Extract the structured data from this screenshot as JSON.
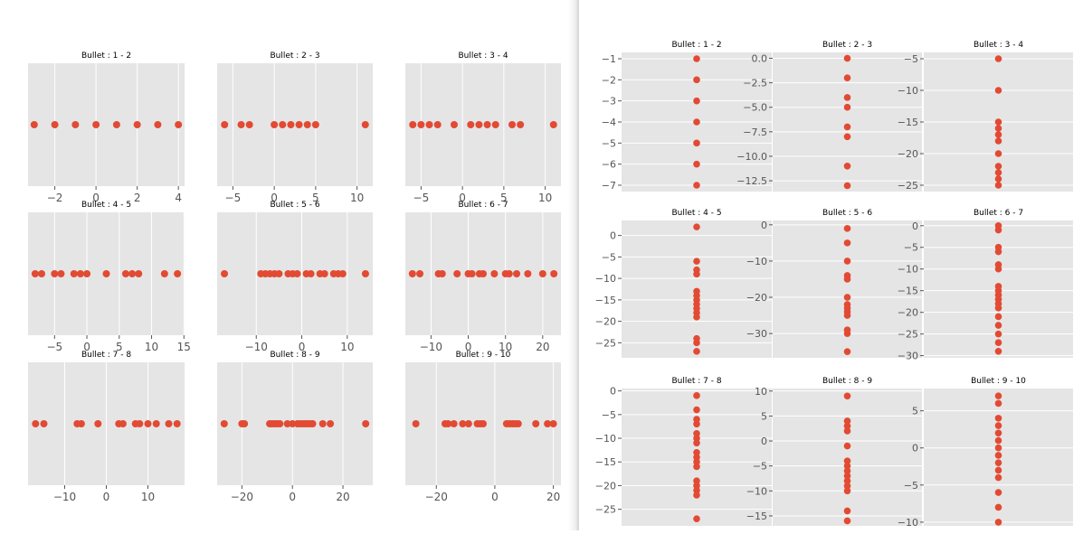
{
  "chart_data": [
    {
      "type": "scatter",
      "orientation": "horizontal",
      "panel": "left",
      "grid": "3x3",
      "subplots": [
        {
          "title": "Bullet : 1 - 2",
          "xlim": [
            -3.3,
            4.3
          ],
          "xticks": [
            -2,
            0,
            2,
            4
          ],
          "tick_labels": [
            "−2",
            "0",
            "2",
            "4"
          ],
          "values": [
            -3,
            -2,
            -1,
            0,
            1,
            2,
            3,
            4
          ]
        },
        {
          "title": "Bullet : 2 - 3",
          "xlim": [
            -6.9,
            11.9
          ],
          "xticks": [
            -5,
            0,
            5,
            10
          ],
          "tick_labels": [
            "−5",
            "0",
            "5",
            "10"
          ],
          "values": [
            -6,
            -4,
            -3,
            0,
            1,
            2,
            3,
            4,
            5,
            11
          ]
        },
        {
          "title": "Bullet : 3 - 4",
          "xlim": [
            -6.9,
            11.9
          ],
          "xticks": [
            -5,
            0,
            5,
            10
          ],
          "tick_labels": [
            "−5",
            "0",
            "5",
            "10"
          ],
          "values": [
            -6,
            -5,
            -4,
            -3,
            -1,
            1,
            2,
            3,
            4,
            6,
            7,
            11
          ]
        },
        {
          "title": "Bullet : 4 - 5",
          "xlim": [
            -9.1,
            15.1
          ],
          "xticks": [
            -5,
            0,
            5,
            10,
            15
          ],
          "tick_labels": [
            "−5",
            "0",
            "5",
            "10",
            "15"
          ],
          "values": [
            -8,
            -7,
            -5,
            -4,
            -2,
            -1,
            0,
            3,
            6,
            7,
            8,
            12,
            14
          ]
        },
        {
          "title": "Bullet : 5 - 6",
          "xlim": [
            -18.6,
            15.6
          ],
          "xticks": [
            -10,
            0,
            10
          ],
          "tick_labels": [
            "−10",
            "0",
            "10"
          ],
          "values": [
            -17,
            -9,
            -8,
            -7,
            -6,
            -5,
            -3,
            -2,
            -1,
            1,
            2,
            4,
            5,
            7,
            8,
            9,
            14
          ]
        },
        {
          "title": "Bullet : 6 - 7",
          "xlim": [
            -16.9,
            24.9
          ],
          "xticks": [
            -10,
            0,
            10,
            20
          ],
          "tick_labels": [
            "−10",
            "0",
            "10",
            "20"
          ],
          "values": [
            -15,
            -13,
            -8,
            -7,
            -3,
            0,
            1,
            3,
            4,
            7,
            10,
            11,
            13,
            16,
            20,
            23
          ]
        },
        {
          "title": "Bullet : 7 - 8",
          "xlim": [
            -18.8,
            18.8
          ],
          "xticks": [
            -10,
            0,
            10
          ],
          "tick_labels": [
            "−10",
            "0",
            "10"
          ],
          "values": [
            -17,
            -15,
            -7,
            -6,
            -2,
            3,
            4,
            7,
            8,
            10,
            12,
            15,
            17
          ]
        },
        {
          "title": "Bullet : 8 - 9",
          "xlim": [
            -29.8,
            31.8
          ],
          "xticks": [
            -20,
            0,
            20
          ],
          "tick_labels": [
            "−20",
            "0",
            "20"
          ],
          "values": [
            -27,
            -20,
            -19,
            -9,
            -8,
            -7,
            -6,
            -5,
            -2,
            0,
            2,
            3,
            4,
            5,
            6,
            7,
            8,
            12,
            15,
            29
          ]
        },
        {
          "title": "Bullet : 9 - 10",
          "xlim": [
            -30.6,
            22.6
          ],
          "xticks": [
            -20,
            0,
            20
          ],
          "tick_labels": [
            "−20",
            "0",
            "20"
          ],
          "values": [
            -27,
            -17,
            -16,
            -14,
            -11,
            -9,
            -6,
            -5,
            -4,
            4,
            5,
            6,
            7,
            8,
            14,
            18,
            20
          ]
        }
      ]
    },
    {
      "type": "scatter",
      "orientation": "vertical",
      "panel": "right",
      "grid": "3x3",
      "subplots": [
        {
          "title": "Bullet : 1 - 2",
          "ylim": [
            -7.3,
            -0.7
          ],
          "yticks": [
            -1,
            -2,
            -3,
            -4,
            -5,
            -6,
            -7
          ],
          "tick_labels": [
            "−1",
            "−2",
            "−3",
            "−4",
            "−5",
            "−6",
            "−7"
          ],
          "values": [
            -1,
            -2,
            -3,
            -4,
            -5,
            -6,
            -7
          ]
        },
        {
          "title": "Bullet : 2 - 3",
          "ylim": [
            -13.6,
            0.6
          ],
          "yticks": [
            0,
            -2.5,
            -5,
            -7.5,
            -10,
            -12.5
          ],
          "tick_labels": [
            "0.0",
            "−2.5",
            "−5.0",
            "−7.5",
            "−10.0",
            "−12.5"
          ],
          "values": [
            0,
            -2,
            -4,
            -5,
            -7,
            -8,
            -11,
            -13
          ]
        },
        {
          "title": "Bullet : 3 - 4",
          "ylim": [
            -26,
            -4
          ],
          "yticks": [
            -5,
            -10,
            -15,
            -20,
            -25
          ],
          "tick_labels": [
            "−5",
            "−10",
            "−15",
            "−20",
            "−25"
          ],
          "values": [
            -5,
            -10,
            -15,
            -16,
            -17,
            -18,
            -20,
            -22,
            -23,
            -24,
            -25
          ]
        },
        {
          "title": "Bullet : 4 - 5",
          "ylim": [
            -28.5,
            3.5
          ],
          "yticks": [
            0,
            -5,
            -10,
            -15,
            -20,
            -25
          ],
          "tick_labels": [
            "0",
            "−5",
            "−10",
            "−15",
            "−20",
            "−25"
          ],
          "values": [
            2,
            -6,
            -8,
            -9,
            -13,
            -14,
            -15,
            -16,
            -17,
            -18,
            -19,
            -24,
            -25,
            -27
          ]
        },
        {
          "title": "Bullet : 5 - 6",
          "ylim": [
            -36.7,
            1.2
          ],
          "yticks": [
            0,
            -10,
            -20,
            -30
          ],
          "tick_labels": [
            "0",
            "−10",
            "−20",
            "−30"
          ],
          "values": [
            -1,
            -5,
            -10,
            -14,
            -15,
            -20,
            -22,
            -23,
            -24,
            -25,
            -29,
            -30,
            -35
          ]
        },
        {
          "title": "Bullet : 6 - 7",
          "ylim": [
            -30.5,
            1.2
          ],
          "yticks": [
            0,
            -5,
            -10,
            -15,
            -20,
            -25,
            -30
          ],
          "tick_labels": [
            "0",
            "−5",
            "−10",
            "−15",
            "−20",
            "−25",
            "−30"
          ],
          "values": [
            0,
            -1,
            -5,
            -6,
            -9,
            -10,
            -14,
            -15,
            -16,
            -17,
            -18,
            -19,
            -21,
            -23,
            -25,
            -27,
            -29
          ]
        },
        {
          "title": "Bullet : 7 - 8",
          "ylim": [
            -28.5,
            0.5
          ],
          "yticks": [
            0,
            -5,
            -10,
            -15,
            -20,
            -25
          ],
          "tick_labels": [
            "0",
            "−5",
            "−10",
            "−15",
            "−20",
            "−25"
          ],
          "values": [
            -1,
            -4,
            -6,
            -7,
            -9,
            -10,
            -11,
            -13,
            -14,
            -15,
            -16,
            -19,
            -20,
            -21,
            -22,
            -27
          ]
        },
        {
          "title": "Bullet : 8 - 9",
          "ylim": [
            -17,
            10.5
          ],
          "yticks": [
            10,
            5,
            0,
            -5,
            -10,
            -15
          ],
          "tick_labels": [
            "10",
            "5",
            "0",
            "−5",
            "−10",
            "−15"
          ],
          "values": [
            9,
            4,
            3,
            2,
            -1,
            -4,
            -5,
            -6,
            -7,
            -8,
            -9,
            -10,
            -14,
            -16
          ]
        },
        {
          "title": "Bullet : 9 - 10",
          "ylim": [
            -10.5,
            8
          ],
          "yticks": [
            5,
            0,
            -5,
            -10
          ],
          "tick_labels": [
            "5",
            "0",
            "−5",
            "−10"
          ],
          "values": [
            7,
            6,
            4,
            3,
            2,
            1,
            0,
            -1,
            -2,
            -3,
            -4,
            -6,
            -8,
            -10
          ]
        }
      ]
    }
  ]
}
